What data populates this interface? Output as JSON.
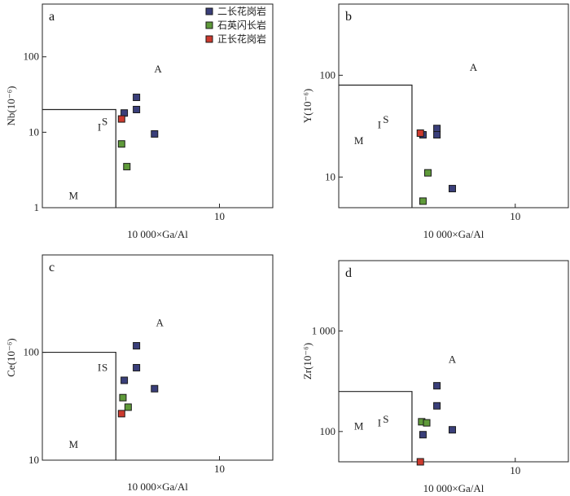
{
  "legend": [
    {
      "label": "二长花岗岩",
      "color": "#3a3f7a"
    },
    {
      "label": "石英闪长岩",
      "color": "#5f9a3a"
    },
    {
      "label": "正长花岗岩",
      "color": "#cc3a2e"
    }
  ],
  "chart_data": [
    {
      "type": "scatter",
      "panel": "a",
      "xlabel": "10 000×Ga/Al",
      "ylabel": "Nb(10⁻⁶)",
      "xscale": "log",
      "yscale": "log",
      "xlim": [
        1.0,
        20.0
      ],
      "ylim": [
        1,
        500
      ],
      "xticks": [
        10
      ],
      "xtick_labels": [
        "10"
      ],
      "yticks": [
        1,
        10,
        100
      ],
      "ytick_labels": [
        "1",
        "10",
        "100"
      ],
      "fields": [
        {
          "x": [
            1.0,
            2.6,
            2.6
          ],
          "y": [
            20,
            20,
            1
          ]
        }
      ],
      "field_labels": [
        {
          "text": "A",
          "x": 4.5,
          "y": 62
        },
        {
          "text": "I",
          "x": 2.1,
          "y": 10.5
        },
        {
          "text": "S",
          "x": 2.25,
          "y": 12.5
        },
        {
          "text": "M",
          "x": 1.5,
          "y": 1.3
        }
      ],
      "series": [
        {
          "name": "二长花岗岩",
          "x": [
            2.9,
            3.4,
            3.4,
            4.3
          ],
          "y": [
            18,
            20,
            29,
            9.5
          ]
        },
        {
          "name": "石英闪长岩",
          "x": [
            2.8,
            3.0
          ],
          "y": [
            7,
            3.5
          ]
        },
        {
          "name": "正长花岗岩",
          "x": [
            2.8
          ],
          "y": [
            15
          ]
        }
      ]
    },
    {
      "type": "scatter",
      "panel": "b",
      "xlabel": "10 000×Ga/Al",
      "ylabel": "Y(10⁻⁶)",
      "xscale": "log",
      "yscale": "log",
      "xlim": [
        1.0,
        20.0
      ],
      "ylim": [
        5,
        500
      ],
      "xticks": [
        10
      ],
      "xtick_labels": [
        "10"
      ],
      "yticks": [
        10,
        100
      ],
      "ytick_labels": [
        "10",
        "100"
      ],
      "fields": [
        {
          "x": [
            1.0,
            2.6,
            2.6
          ],
          "y": [
            80,
            80,
            5
          ]
        }
      ],
      "field_labels": [
        {
          "text": "A",
          "x": 5.8,
          "y": 110
        },
        {
          "text": "I",
          "x": 1.7,
          "y": 30
        },
        {
          "text": "S",
          "x": 1.85,
          "y": 34
        },
        {
          "text": "M",
          "x": 1.3,
          "y": 21
        }
      ],
      "series": [
        {
          "name": "二长花岗岩",
          "x": [
            3.0,
            3.6,
            3.6,
            4.4
          ],
          "y": [
            26,
            30,
            26,
            7.7
          ]
        },
        {
          "name": "石英闪长岩",
          "x": [
            3.2,
            3.0
          ],
          "y": [
            11,
            5.8
          ]
        },
        {
          "name": "正长花岗岩",
          "x": [
            2.9
          ],
          "y": [
            27
          ]
        }
      ]
    },
    {
      "type": "scatter",
      "panel": "c",
      "xlabel": "10 000×Ga/Al",
      "ylabel": "Ce(10⁻⁶)",
      "xscale": "log",
      "yscale": "log",
      "xlim": [
        1.0,
        20.0
      ],
      "ylim": [
        10,
        800
      ],
      "xticks": [
        10
      ],
      "xtick_labels": [
        "10"
      ],
      "yticks": [
        10,
        100
      ],
      "ytick_labels": [
        "10",
        "100"
      ],
      "fields": [
        {
          "x": [
            1.0,
            2.6,
            2.6
          ],
          "y": [
            100,
            100,
            10
          ]
        }
      ],
      "field_labels": [
        {
          "text": "A",
          "x": 4.6,
          "y": 175
        },
        {
          "text": "I",
          "x": 2.1,
          "y": 67
        },
        {
          "text": "S",
          "x": 2.25,
          "y": 67
        },
        {
          "text": "M",
          "x": 1.5,
          "y": 13
        }
      ],
      "series": [
        {
          "name": "二长花岗岩",
          "x": [
            2.9,
            3.4,
            3.4,
            4.3
          ],
          "y": [
            55,
            72,
            115,
            46
          ]
        },
        {
          "name": "石英闪长岩",
          "x": [
            2.85,
            3.05
          ],
          "y": [
            38,
            31
          ]
        },
        {
          "name": "正长花岗岩",
          "x": [
            2.8
          ],
          "y": [
            27
          ]
        }
      ]
    },
    {
      "type": "scatter",
      "panel": "d",
      "xlabel": "10 000×Ga/Al",
      "ylabel": "Zr(10⁻⁶)",
      "xscale": "log",
      "yscale": "log",
      "xlim": [
        1.0,
        20.0
      ],
      "ylim": [
        50,
        5000
      ],
      "xticks": [
        10
      ],
      "xtick_labels": [
        "10"
      ],
      "yticks": [
        100,
        1000
      ],
      "ytick_labels": [
        "100",
        "1 000"
      ],
      "fields": [
        {
          "x": [
            1.0,
            2.6,
            2.6
          ],
          "y": [
            250,
            250,
            50
          ]
        }
      ],
      "field_labels": [
        {
          "text": "A",
          "x": 4.4,
          "y": 480
        },
        {
          "text": "I",
          "x": 1.7,
          "y": 112
        },
        {
          "text": "S",
          "x": 1.85,
          "y": 122
        },
        {
          "text": "M",
          "x": 1.3,
          "y": 104
        }
      ],
      "series": [
        {
          "name": "二长花岗岩",
          "x": [
            3.0,
            3.6,
            3.6,
            4.4
          ],
          "y": [
            93,
            180,
            285,
            104
          ]
        },
        {
          "name": "石英闪长岩",
          "x": [
            2.95,
            3.15
          ],
          "y": [
            125,
            122
          ]
        },
        {
          "name": "正长花岗岩",
          "x": [
            2.9
          ],
          "y": [
            50
          ]
        }
      ]
    }
  ]
}
